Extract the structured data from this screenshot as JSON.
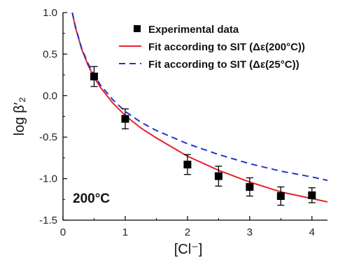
{
  "chart_data": {
    "type": "scatter",
    "xlabel": "[Cl⁻]",
    "ylabel": "log β′₂",
    "xlim": [
      0,
      4.25
    ],
    "ylim": [
      -1.5,
      1.0
    ],
    "x_ticks": [
      0,
      1,
      2,
      3,
      4
    ],
    "x_tick_labels": [
      "0",
      "1",
      "2",
      "3",
      "4"
    ],
    "y_ticks": [
      1.0,
      0.5,
      0.0,
      -0.5,
      -1.0,
      -1.5
    ],
    "y_tick_labels": [
      "1.0",
      "0.5",
      "0.0",
      "-0.5",
      "-1.0",
      "-1.5"
    ],
    "grid": false,
    "legend_position": "top-right",
    "annotation": "200°C",
    "series": [
      {
        "name": "Experimental data",
        "kind": "points",
        "marker": "square",
        "color": "#000000",
        "x": [
          0.5,
          1.0,
          2.0,
          2.5,
          3.0,
          3.5,
          4.0
        ],
        "y": [
          0.23,
          -0.28,
          -0.83,
          -0.97,
          -1.1,
          -1.21,
          -1.2
        ],
        "yerr": [
          0.12,
          0.12,
          0.12,
          0.12,
          0.11,
          0.11,
          0.09
        ]
      },
      {
        "name": "Fit according to SIT (Δε(200°C))",
        "kind": "line",
        "style": "solid",
        "color": "#e8202a",
        "x": [
          0.15,
          0.2,
          0.3,
          0.4,
          0.5,
          0.6,
          0.8,
          1.0,
          1.25,
          1.5,
          2.0,
          2.5,
          3.0,
          3.5,
          4.0,
          4.25
        ],
        "y": [
          1.0,
          0.82,
          0.56,
          0.37,
          0.22,
          0.1,
          -0.09,
          -0.24,
          -0.39,
          -0.51,
          -0.73,
          -0.9,
          -1.04,
          -1.16,
          -1.24,
          -1.28
        ]
      },
      {
        "name": "Fit according to SIT (Δε(25°C))",
        "kind": "line",
        "style": "dashed",
        "color": "#2233cc",
        "x": [
          0.15,
          0.2,
          0.3,
          0.4,
          0.5,
          0.6,
          0.8,
          1.0,
          1.25,
          1.5,
          2.0,
          2.5,
          3.0,
          3.5,
          4.0,
          4.25
        ],
        "y": [
          1.0,
          0.83,
          0.57,
          0.39,
          0.25,
          0.13,
          -0.05,
          -0.19,
          -0.32,
          -0.42,
          -0.58,
          -0.71,
          -0.82,
          -0.91,
          -0.98,
          -1.02
        ]
      }
    ]
  }
}
